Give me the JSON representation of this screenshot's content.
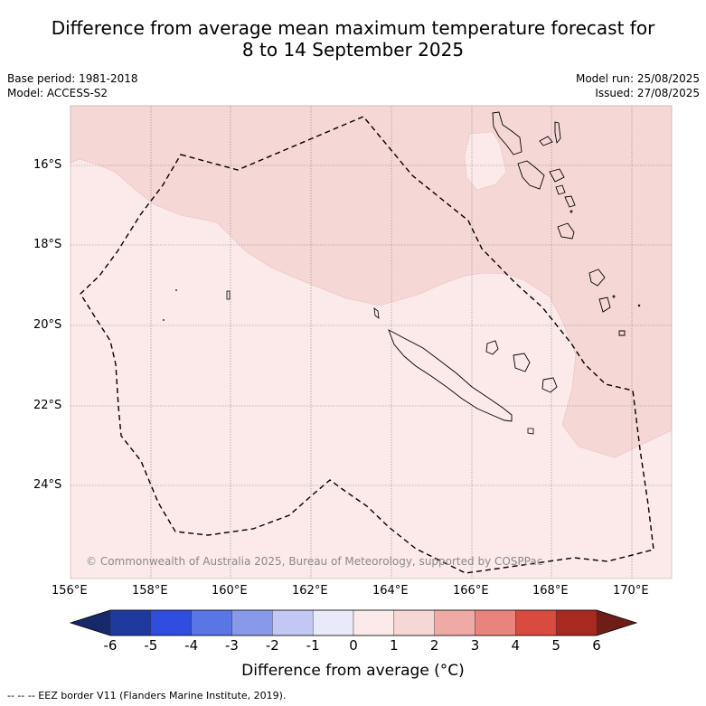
{
  "title": {
    "line1": "Difference from average mean maximum temperature forecast for",
    "line2": "8 to 14 September 2025"
  },
  "meta": {
    "base_period": "Base period: 1981-2018",
    "model": "Model: ACCESS-S2",
    "model_run": "Model run: 25/08/2025",
    "issued": "Issued: 27/08/2025"
  },
  "map": {
    "lat_labels": [
      "16°S",
      "18°S",
      "20°S",
      "22°S",
      "24°S"
    ],
    "lon_labels": [
      "156°E",
      "158°E",
      "160°E",
      "162°E",
      "164°E",
      "166°E",
      "168°E",
      "170°E"
    ],
    "copyright": "© Commonwealth of Australia 2025, Bureau of Meteorology, supported by COSPPac",
    "fill_colors": {
      "zero_to_one": "#fbeae9",
      "one_to_two": "#f5d7d6",
      "two_to_three": "#efaaa6"
    }
  },
  "colorbar": {
    "label": "Difference from average (°C)",
    "ticks": [
      "-6",
      "-5",
      "-4",
      "-3",
      "-2",
      "-1",
      "0",
      "1",
      "2",
      "3",
      "4",
      "5",
      "6"
    ],
    "colors": [
      "#1f3a9f",
      "#2f4de0",
      "#5a75e6",
      "#8899ea",
      "#c2c8f3",
      "#e8eaf9",
      "#fbeae9",
      "#f5d7d6",
      "#efaaa6",
      "#e8847c",
      "#d94b3f",
      "#a8291f"
    ],
    "under_color": "#17296b",
    "over_color": "#6f1d17"
  },
  "footer": {
    "legend": "--  --  -- EEZ border V11 (Flanders Marine Institute, 2019)."
  }
}
